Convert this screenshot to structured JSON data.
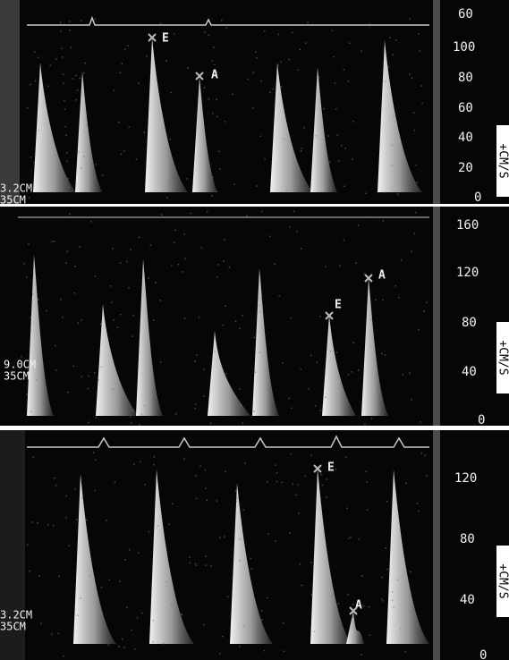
{
  "panels": [
    {
      "scale_ticks": [
        "60",
        "100",
        "80",
        "60",
        "40",
        "20",
        "0"
      ],
      "depth_labels": [
        "3.2CM",
        "35CM"
      ],
      "unit": "+CM/S",
      "markers": [
        "E",
        "A"
      ]
    },
    {
      "scale_ticks": [
        "160",
        "120",
        "80",
        "40",
        "0"
      ],
      "depth_labels": [
        "9.0CM",
        "35CM"
      ],
      "unit": "+CM/S",
      "markers": [
        "E",
        "A"
      ]
    },
    {
      "scale_ticks": [
        "120",
        "80",
        "40",
        "0"
      ],
      "depth_labels": [
        "3.2CM",
        "35CM"
      ],
      "unit": "+CM/S",
      "markers": [
        "E",
        "A"
      ]
    }
  ]
}
